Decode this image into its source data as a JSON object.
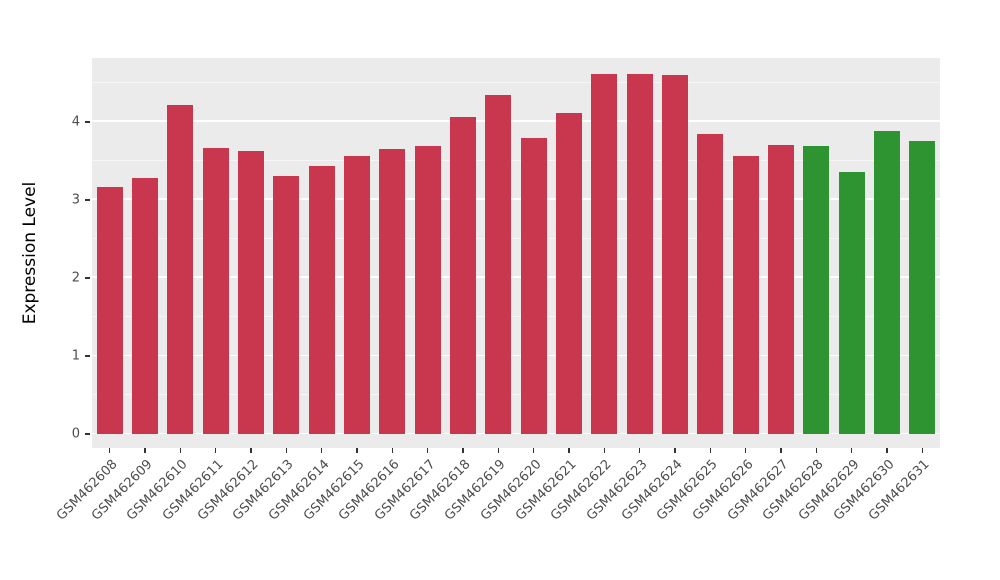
{
  "style": {
    "figure_background": "#FFFFFF",
    "panel_background": "#EBEBEB",
    "gridline_color": "#FFFFFF",
    "axis_text_color": "#4D4D4D",
    "axis_title_color": "#000000"
  },
  "chart_data": {
    "type": "bar",
    "title": "",
    "xlabel": "",
    "ylabel": "Expression Level",
    "ylim": [
      0,
      4.82
    ],
    "yticks": [
      0,
      1,
      2,
      3,
      4
    ],
    "grid": "horizontal major and minor white gridlines on gray panel",
    "legend_position": "none",
    "categories": [
      "GSM462608",
      "GSM462609",
      "GSM462610",
      "GSM462611",
      "GSM462612",
      "GSM462613",
      "GSM462614",
      "GSM462615",
      "GSM462616",
      "GSM462617",
      "GSM462618",
      "GSM462619",
      "GSM462620",
      "GSM462621",
      "GSM462622",
      "GSM462623",
      "GSM462624",
      "GSM462625",
      "GSM462626",
      "GSM462627",
      "GSM462628",
      "GSM462629",
      "GSM462630",
      "GSM462631"
    ],
    "values": [
      3.17,
      3.28,
      4.22,
      3.67,
      3.63,
      3.31,
      3.44,
      3.57,
      3.65,
      3.69,
      4.06,
      4.35,
      3.8,
      4.12,
      4.62,
      4.62,
      4.6,
      3.85,
      3.56,
      3.71,
      3.69,
      3.36,
      3.89,
      3.75
    ],
    "bar_groups": [
      "red",
      "red",
      "red",
      "red",
      "red",
      "red",
      "red",
      "red",
      "red",
      "red",
      "red",
      "red",
      "red",
      "red",
      "red",
      "red",
      "red",
      "red",
      "red",
      "red",
      "green",
      "green",
      "green",
      "green"
    ],
    "group_colors": {
      "red": "#C8374D",
      "green": "#2E9431"
    }
  }
}
